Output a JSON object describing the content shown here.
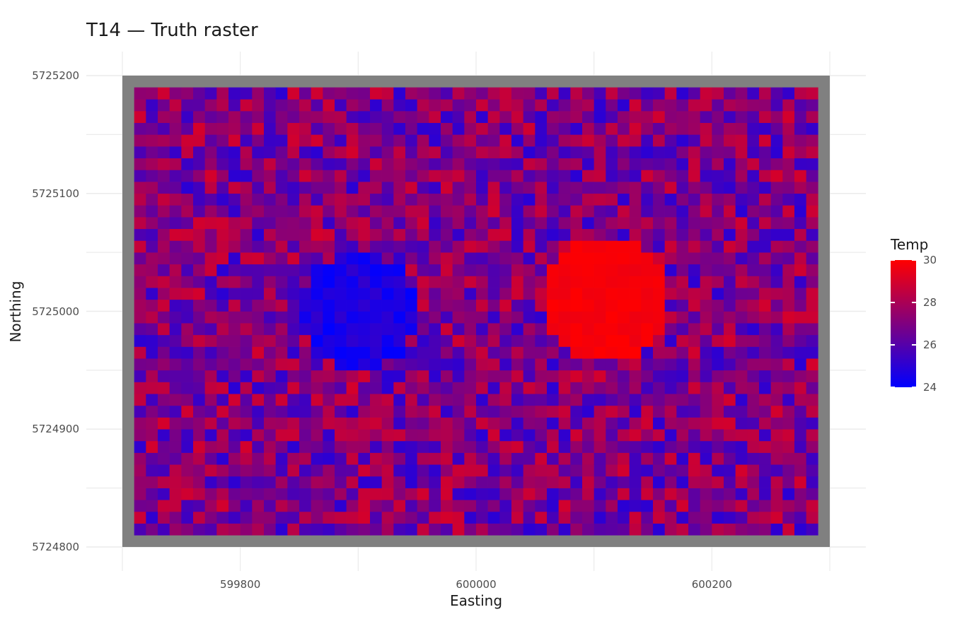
{
  "chart_data": {
    "type": "heatmap",
    "title": "T14 — Truth raster",
    "xlabel": "Easting",
    "ylabel": "Northing",
    "xlim": [
      599700,
      600300
    ],
    "ylim": [
      5724800,
      5725200
    ],
    "x_ticks": [
      "599800",
      "600000",
      "600200"
    ],
    "y_ticks": [
      "5724800",
      "5724900",
      "5725000",
      "5725100",
      "5725200"
    ],
    "grid": true,
    "raster_extent": {
      "x": [
        599710,
        600290
      ],
      "y": [
        5724810,
        5725190
      ]
    },
    "raster_cell_size": 10,
    "frame_color": "#808080",
    "legend": {
      "title": "Temp",
      "placement": "right",
      "min": 24,
      "max": 30,
      "ticks": [
        "24",
        "26",
        "28",
        "30"
      ],
      "low_color": "#0000ff",
      "high_color": "#ff0000"
    },
    "features": [
      {
        "name": "cold-spot",
        "center": [
          599900,
          5725000
        ],
        "radius": 50,
        "value": 24
      },
      {
        "name": "hot-spot",
        "center": [
          600110,
          5725010
        ],
        "radius": 55,
        "value": 30
      }
    ],
    "background_range": [
      25,
      29
    ]
  }
}
